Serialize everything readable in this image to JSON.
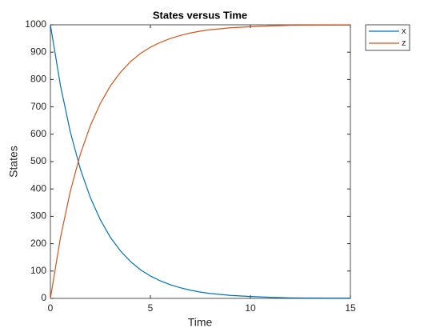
{
  "chart_data": {
    "type": "line",
    "title": "States versus Time",
    "xlabel": "Time",
    "ylabel": "States",
    "x": [
      0,
      0.5,
      1,
      1.5,
      2,
      2.5,
      3,
      3.5,
      4,
      4.5,
      5,
      5.5,
      6,
      6.5,
      7,
      7.5,
      8,
      9,
      10,
      11,
      12,
      13,
      14,
      15
    ],
    "series": [
      {
        "name": "x",
        "color": "#0072bd",
        "values": [
          1000,
          779,
          607,
          472,
          368,
          287,
          223,
          174,
          135,
          105,
          82,
          64,
          50,
          39,
          30,
          23,
          18,
          11,
          7,
          4,
          2,
          1.5,
          1,
          1
        ]
      },
      {
        "name": "z",
        "color": "#d95319",
        "values": [
          0,
          221,
          393,
          528,
          632,
          713,
          777,
          826,
          865,
          895,
          918,
          936,
          950,
          961,
          970,
          977,
          982,
          989,
          993,
          996,
          998,
          998.5,
          999,
          999
        ]
      }
    ],
    "xlim": [
      0,
      15
    ],
    "xticks": [
      0,
      5,
      10,
      15
    ],
    "ylim": [
      0,
      1000
    ],
    "yticks": [
      0,
      100,
      200,
      300,
      400,
      500,
      600,
      700,
      800,
      900,
      1000
    ],
    "legend": "outside-top-right"
  }
}
